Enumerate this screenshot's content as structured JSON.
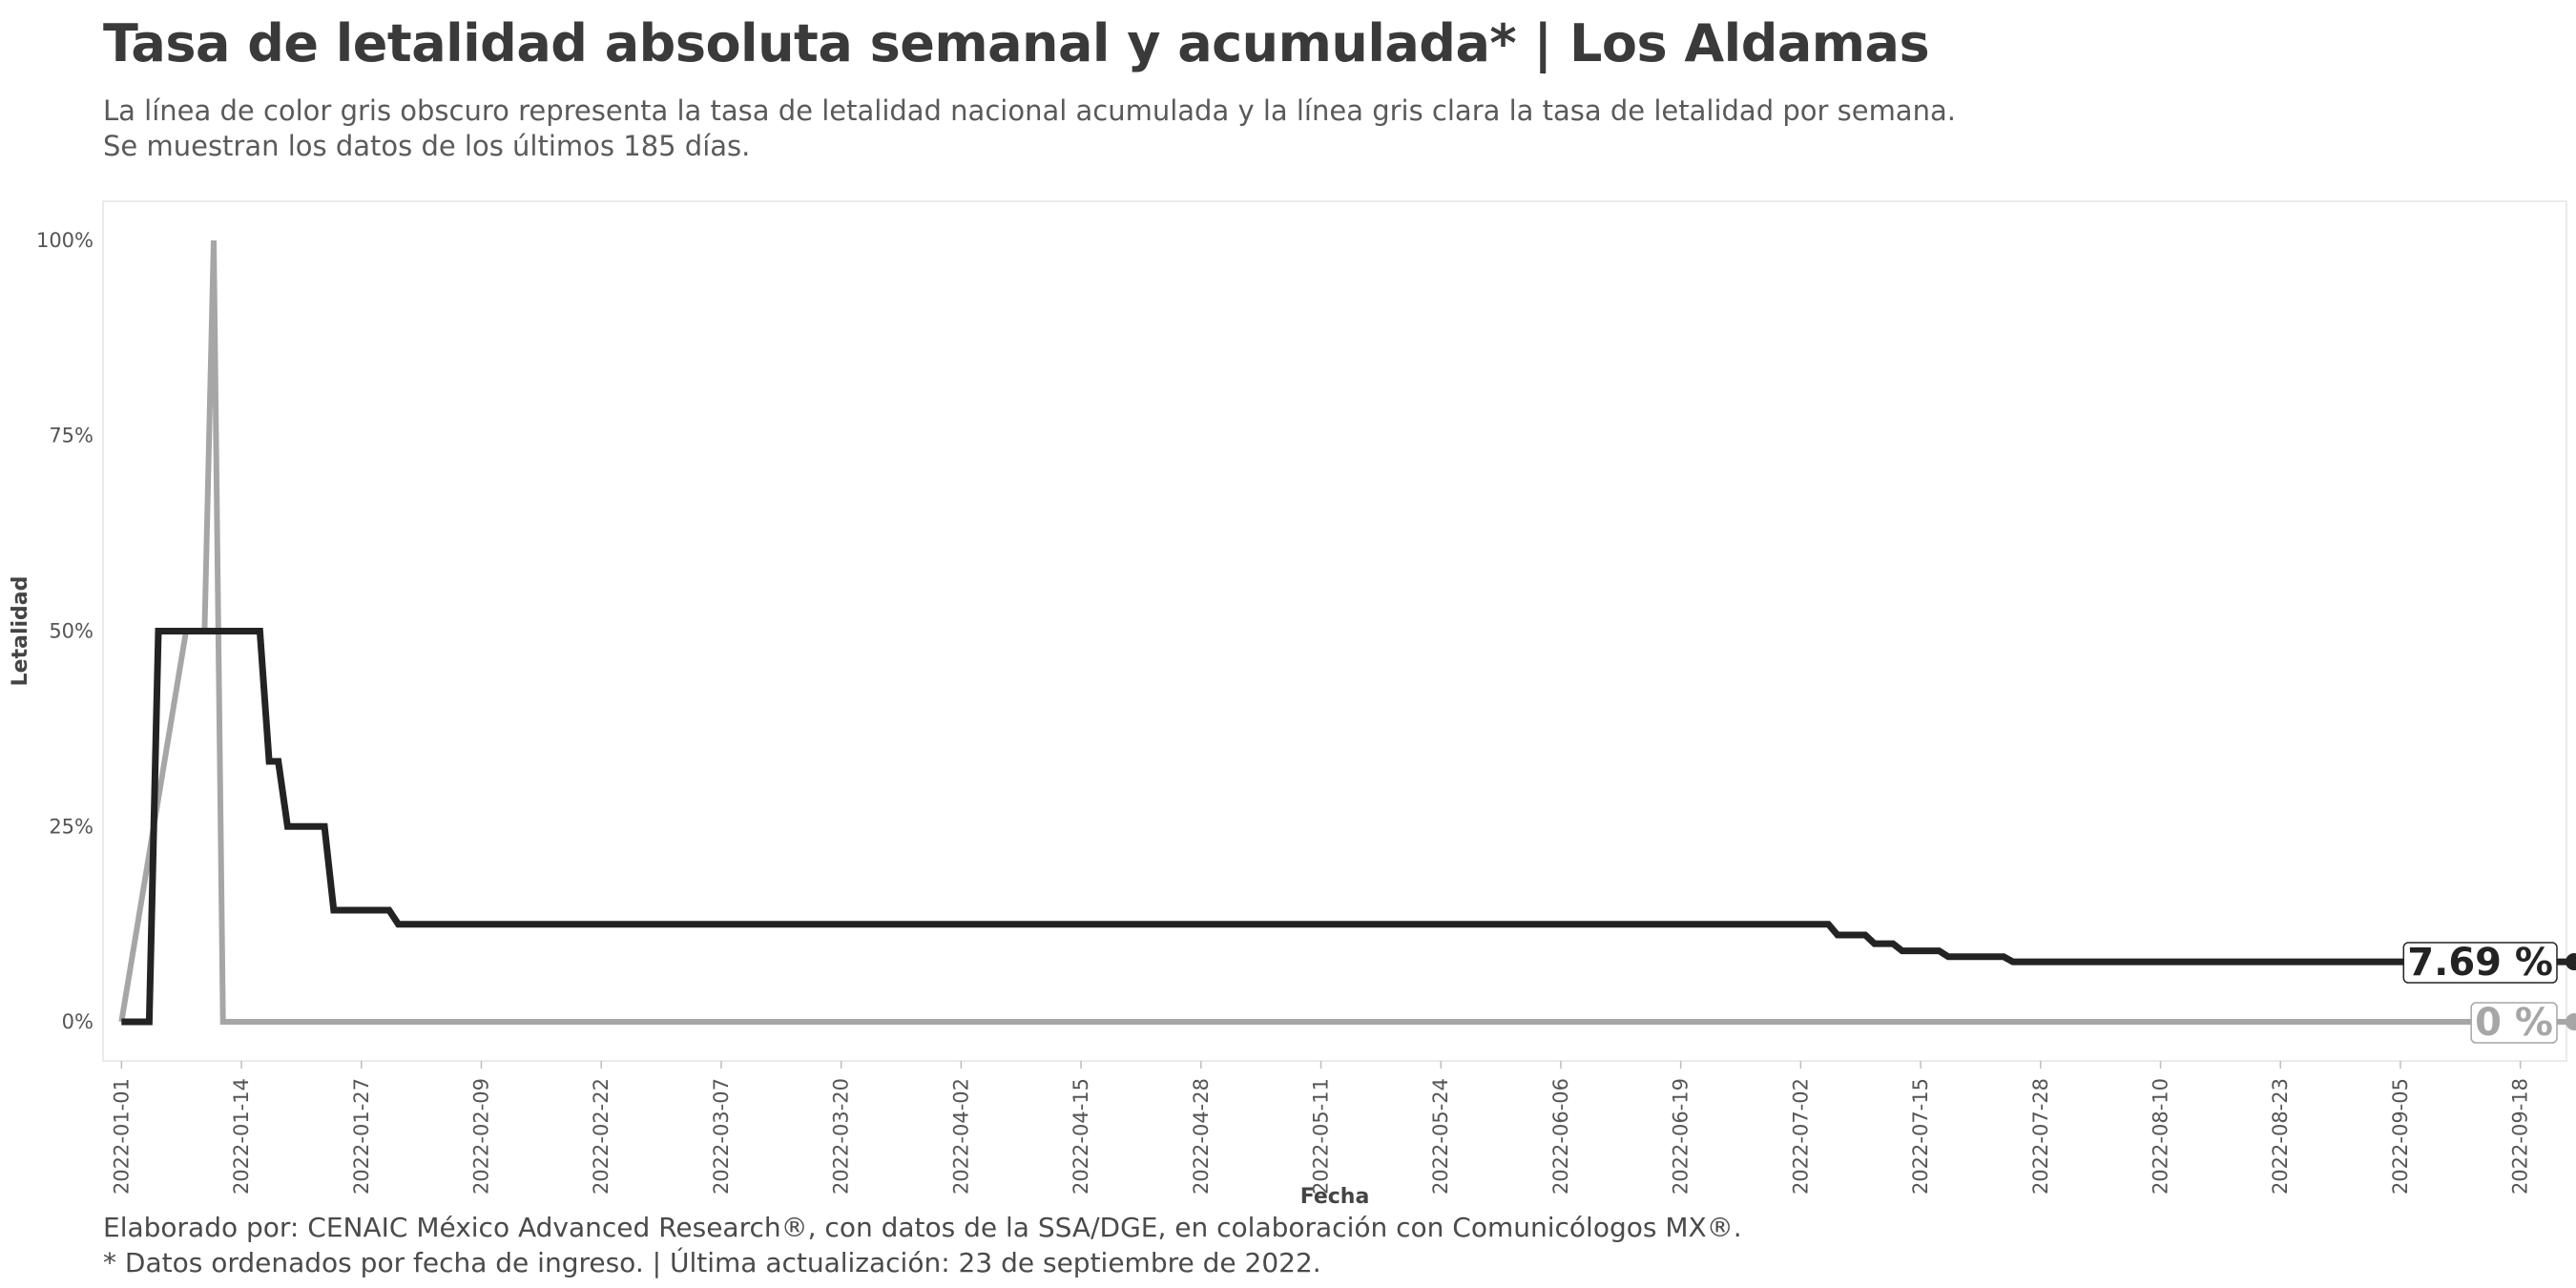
{
  "title": "Tasa de letalidad absoluta semanal y acumulada* | Los Aldamas",
  "subtitle": [
    "La línea de color gris obscuro representa la tasa de letalidad nacional acumulada y la línea gris clara la tasa de letalidad por semana.",
    "Se muestran los datos de los últimos 185 días."
  ],
  "caption": [
    "Elaborado por: CENAIC México Advanced Research®, con datos de la SSA/DGE, en colaboración con Comunicólogos MX®.",
    "* Datos ordenados por fecha de ingreso. | Última actualización: 23 de septiembre de 2022."
  ],
  "colors": {
    "accumulated": "#232323",
    "weekly": "#a6a6a6",
    "panel_border": "#e4e4e4"
  },
  "chart_data": {
    "type": "line",
    "xlabel": "Fecha",
    "ylabel": "Letalidad",
    "x_type": "date",
    "xlim": [
      "2021-12-30",
      "2022-09-23"
    ],
    "ylim": [
      -0.05,
      1.05
    ],
    "y_ticks": [
      0,
      0.25,
      0.5,
      0.75,
      1.0
    ],
    "y_tick_labels": [
      "0%",
      "25%",
      "50%",
      "75%",
      "100%"
    ],
    "x_ticks": [
      "2022-01-01",
      "2022-01-14",
      "2022-01-27",
      "2022-02-09",
      "2022-02-22",
      "2022-03-07",
      "2022-03-20",
      "2022-04-02",
      "2022-04-15",
      "2022-04-28",
      "2022-05-11",
      "2022-05-24",
      "2022-06-06",
      "2022-06-19",
      "2022-07-02",
      "2022-07-15",
      "2022-07-28",
      "2022-08-10",
      "2022-08-23",
      "2022-09-05",
      "2022-09-18"
    ],
    "grid": false,
    "legend": "none",
    "series": [
      {
        "key": "accumulated",
        "step": true,
        "end_label": "7.69 %",
        "points": [
          [
            "2022-01-01",
            0
          ],
          [
            "2022-01-04",
            0
          ],
          [
            "2022-01-05",
            0.5
          ],
          [
            "2022-01-16",
            0.5
          ],
          [
            "2022-01-17",
            0.3333
          ],
          [
            "2022-01-18",
            0.3333
          ],
          [
            "2022-01-19",
            0.25
          ],
          [
            "2022-01-23",
            0.25
          ],
          [
            "2022-01-24",
            0.1429
          ],
          [
            "2022-01-30",
            0.1429
          ],
          [
            "2022-01-31",
            0.125
          ],
          [
            "2022-07-05",
            0.125
          ],
          [
            "2022-07-06",
            0.1111
          ],
          [
            "2022-07-09",
            0.1111
          ],
          [
            "2022-07-10",
            0.1
          ],
          [
            "2022-07-12",
            0.1
          ],
          [
            "2022-07-13",
            0.0909
          ],
          [
            "2022-07-17",
            0.0909
          ],
          [
            "2022-07-18",
            0.0833
          ],
          [
            "2022-07-24",
            0.0833
          ],
          [
            "2022-07-25",
            0.0769
          ],
          [
            "2022-09-23",
            0.0769
          ]
        ]
      },
      {
        "key": "weekly",
        "step": false,
        "end_label": "0 %",
        "points": [
          [
            "2022-01-01",
            0
          ],
          [
            "2022-01-08",
            0.5
          ],
          [
            "2022-01-10",
            0.5
          ],
          [
            "2022-01-11",
            1.0
          ],
          [
            "2022-01-12",
            0
          ],
          [
            "2022-09-23",
            0
          ]
        ]
      }
    ]
  }
}
